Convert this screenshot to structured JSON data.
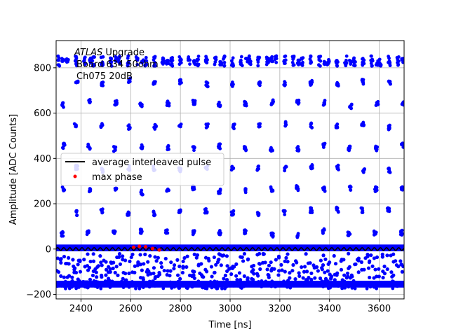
{
  "chart_data": {
    "type": "scatter",
    "xlabel": "Time [ns]",
    "ylabel": "Amplitude [ADC Counts]",
    "xlim": [
      2300,
      3700
    ],
    "ylim": [
      -220,
      920
    ],
    "x_ticks": [
      2400,
      2600,
      2800,
      3000,
      3200,
      3400,
      3600
    ],
    "y_ticks": [
      -200,
      0,
      200,
      400,
      600,
      800
    ],
    "grid": true,
    "legend_position": "center-left",
    "annotation": {
      "line1_italic": "ATLAS",
      "line1_rest": " Upgrade",
      "line2": "Board 634 50ohm",
      "line3": "Ch075 20dB"
    },
    "series": [
      {
        "name": "",
        "kind": "points",
        "color": "#0000ff",
        "description_bands": {
          "baseline_band": [
            -10,
            20
          ],
          "undershoot_band": [
            -170,
            -140
          ],
          "pulse_period_ns": 25
        }
      },
      {
        "name": "average interleaved pulse",
        "kind": "line",
        "color": "#000000",
        "mean": 0,
        "ripple": 6
      },
      {
        "name": "max phase",
        "kind": "points",
        "color": "#ff0000",
        "x": [
          2612,
          2635,
          2660,
          2688,
          2715
        ],
        "y": [
          8,
          12,
          10,
          2,
          -4
        ]
      }
    ]
  }
}
